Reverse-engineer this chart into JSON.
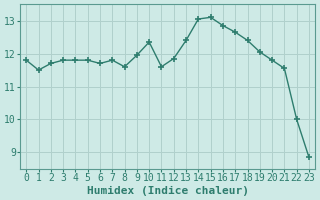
{
  "x": [
    0,
    1,
    2,
    3,
    4,
    5,
    6,
    7,
    8,
    9,
    10,
    11,
    12,
    13,
    14,
    15,
    16,
    17,
    18,
    19,
    20,
    21,
    22,
    23
  ],
  "y": [
    11.8,
    11.5,
    11.7,
    11.8,
    11.8,
    11.8,
    11.7,
    11.8,
    11.6,
    11.95,
    12.35,
    11.6,
    11.85,
    12.4,
    13.05,
    13.1,
    12.85,
    12.65,
    12.4,
    12.05,
    11.8,
    11.55,
    10.0,
    8.85
  ],
  "line_color": "#2e7d6e",
  "marker": "+",
  "marker_size": 4,
  "line_width": 1.0,
  "bg_color": "#ceeae6",
  "grid_color": "#b0d0cc",
  "xlabel": "Humidex (Indice chaleur)",
  "xlabel_fontsize": 8,
  "tick_fontsize": 7,
  "ylim": [
    8.5,
    13.5
  ],
  "yticks": [
    9,
    10,
    11,
    12,
    13
  ],
  "xlim": [
    -0.5,
    23.5
  ],
  "xticks": [
    0,
    1,
    2,
    3,
    4,
    5,
    6,
    7,
    8,
    9,
    10,
    11,
    12,
    13,
    14,
    15,
    16,
    17,
    18,
    19,
    20,
    21,
    22,
    23
  ],
  "spine_color": "#5a9a90"
}
